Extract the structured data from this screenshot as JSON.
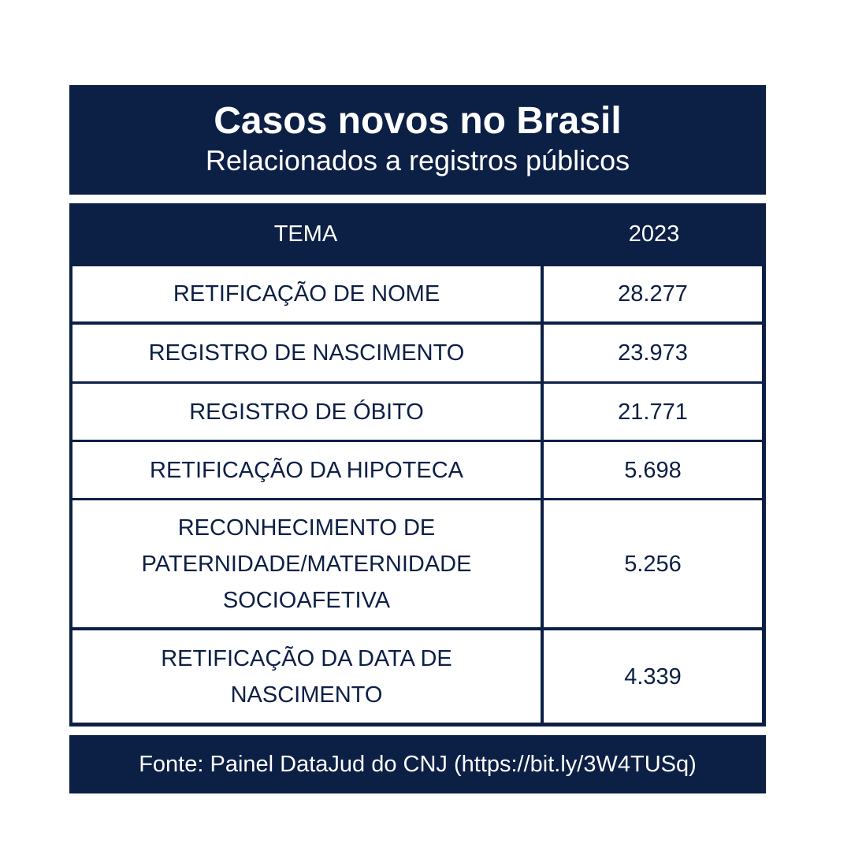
{
  "chart_data": {
    "type": "table",
    "title": "Casos novos no Brasil",
    "subtitle": "Relacionados a registros públicos",
    "columns": [
      "TEMA",
      "2023"
    ],
    "rows": [
      {
        "tema": "RETIFICAÇÃO DE NOME",
        "value": "28.277"
      },
      {
        "tema": "REGISTRO DE NASCIMENTO",
        "value": "23.973"
      },
      {
        "tema": "REGISTRO DE ÓBITO",
        "value": "21.771"
      },
      {
        "tema": "RETIFICAÇÃO DA HIPOTECA",
        "value": "5.698"
      },
      {
        "tema": "RECONHECIMENTO DE\nPATERNIDADE/MATERNIDADE\nSOCIOAFETIVA",
        "value": "5.256"
      },
      {
        "tema": "RETIFICAÇÃO DA DATA DE\nNASCIMENTO",
        "value": "4.339"
      }
    ],
    "source": "Fonte: Painel DataJud do CNJ (https://bit.ly/3W4TUSq)"
  },
  "colors": {
    "navy": "#0c1f45",
    "white": "#ffffff"
  }
}
